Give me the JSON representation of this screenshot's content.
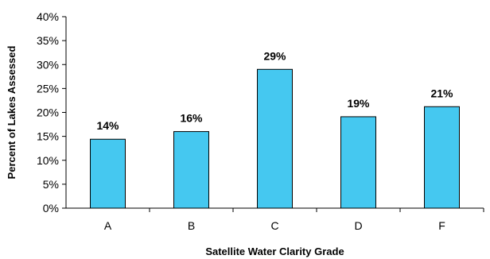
{
  "chart_data": {
    "type": "bar",
    "title": "",
    "xlabel": "Satellite Water Clarity Grade",
    "ylabel": "Percent of Lakes Assessed",
    "categories": [
      "A",
      "B",
      "C",
      "D",
      "F"
    ],
    "values": [
      14.4,
      16.0,
      29.0,
      19.1,
      21.2
    ],
    "data_labels": [
      "14%",
      "16%",
      "29%",
      "19%",
      "21%"
    ],
    "ylim": [
      0,
      40
    ],
    "yticks": [
      0,
      5,
      10,
      15,
      20,
      25,
      30,
      35,
      40
    ],
    "ytick_labels": [
      "0%",
      "5%",
      "10%",
      "15%",
      "20%",
      "25%",
      "30%",
      "35%",
      "40%"
    ],
    "grid": false,
    "legend": "none",
    "bar_color": "#45C8F0",
    "bar_edge_color": "#000000"
  }
}
